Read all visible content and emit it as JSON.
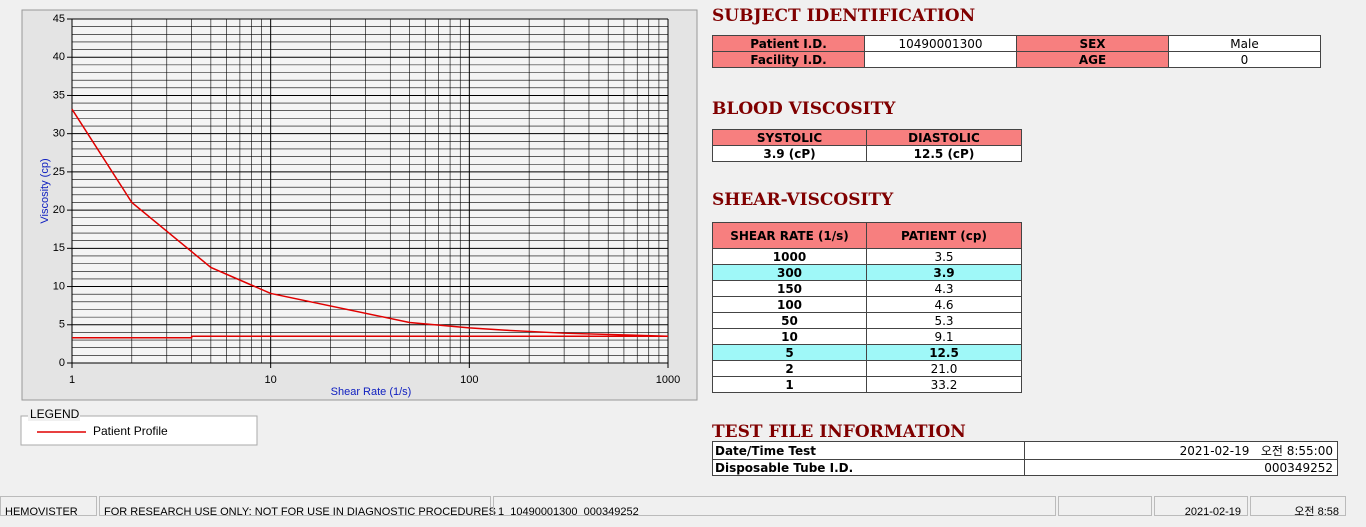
{
  "chart_data": {
    "type": "line",
    "x_label": "Shear Rate (1/s)",
    "y_label": "Viscosity (cp)",
    "xscale": "log",
    "xlim": [
      1,
      1000
    ],
    "xticks": [
      1,
      10,
      100,
      1000
    ],
    "ylim": [
      0,
      45
    ],
    "yticks": [
      0,
      5,
      10,
      15,
      20,
      25,
      30,
      35,
      40,
      45
    ],
    "grid": true,
    "minor_grid": true,
    "y_minor_divisions": 5,
    "legend_title": "LEGEND",
    "series": [
      {
        "name": "Patient Profile",
        "color": "#e00000",
        "x": [
          1,
          2,
          5,
          10,
          50,
          100,
          150,
          300,
          1000
        ],
        "values": [
          33.2,
          21.0,
          12.5,
          9.1,
          5.3,
          4.6,
          4.3,
          3.9,
          3.5
        ]
      },
      {
        "color": "#e00000",
        "x": [
          1,
          4,
          4,
          1000
        ],
        "values": [
          3.3,
          3.3,
          3.5,
          3.5
        ]
      }
    ]
  },
  "subject": {
    "title": "SUBJECT IDENTIFICATION",
    "fields": [
      {
        "label": "Patient I.D.",
        "value": "10490001300"
      },
      {
        "label": "SEX",
        "value": "Male"
      },
      {
        "label": "Facility I.D."
      },
      {
        "label": "AGE",
        "value": "0"
      }
    ]
  },
  "blood": {
    "title": "BLOOD VISCOSITY",
    "headers": [
      "SYSTOLIC",
      "DIASTOLIC"
    ],
    "values": [
      "3.9 (cP)",
      "12.5 (cP)"
    ]
  },
  "shear": {
    "title": "SHEAR-VISCOSITY",
    "headers": [
      "SHEAR RATE (1/s)",
      "PATIENT (cp)"
    ],
    "rows": [
      [
        "1000",
        "3.5"
      ],
      [
        "300",
        "3.9"
      ],
      [
        "150",
        "4.3"
      ],
      [
        "100",
        "4.6"
      ],
      [
        "50",
        "5.3"
      ],
      [
        "10",
        "9.1"
      ],
      [
        "5",
        "12.5"
      ],
      [
        "2",
        "21.0"
      ],
      [
        "1",
        "33.2"
      ]
    ],
    "highlighted": [
      1,
      6
    ]
  },
  "test_file": {
    "title": "TEST FILE INFORMATION",
    "rows": [
      [
        "Date/Time Test",
        "2021-02-19   오전 8:55:00"
      ],
      [
        "Disposable Tube I.D.",
        "000349252"
      ]
    ]
  },
  "status_bar": [
    "HEMOVISTER",
    "FOR RESEARCH USE ONLY: NOT FOR USE IN DIAGNOSTIC PROCEDURES",
    "1  10490001300  000349252",
    "2021-02-19",
    "오전 8:58"
  ]
}
